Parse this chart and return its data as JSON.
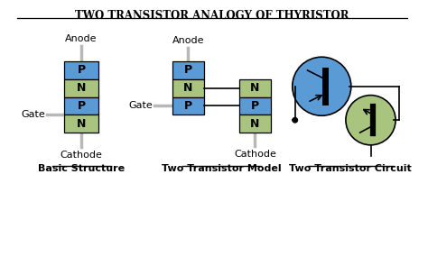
{
  "title": "TWO TRANSISTOR ANALOGY OF THYRISTOR",
  "bg_color": "#ffffff",
  "p_color": "#5b9bd5",
  "n_color": "#a9c47f",
  "wire_color": "#b8b8b8",
  "text_color": "#000000",
  "circle_blue": "#5b9bd5",
  "circle_green": "#a9c47f",
  "sections": [
    "Basic Structure",
    "Two Transistor Model",
    "Two Transistor Circuit"
  ]
}
